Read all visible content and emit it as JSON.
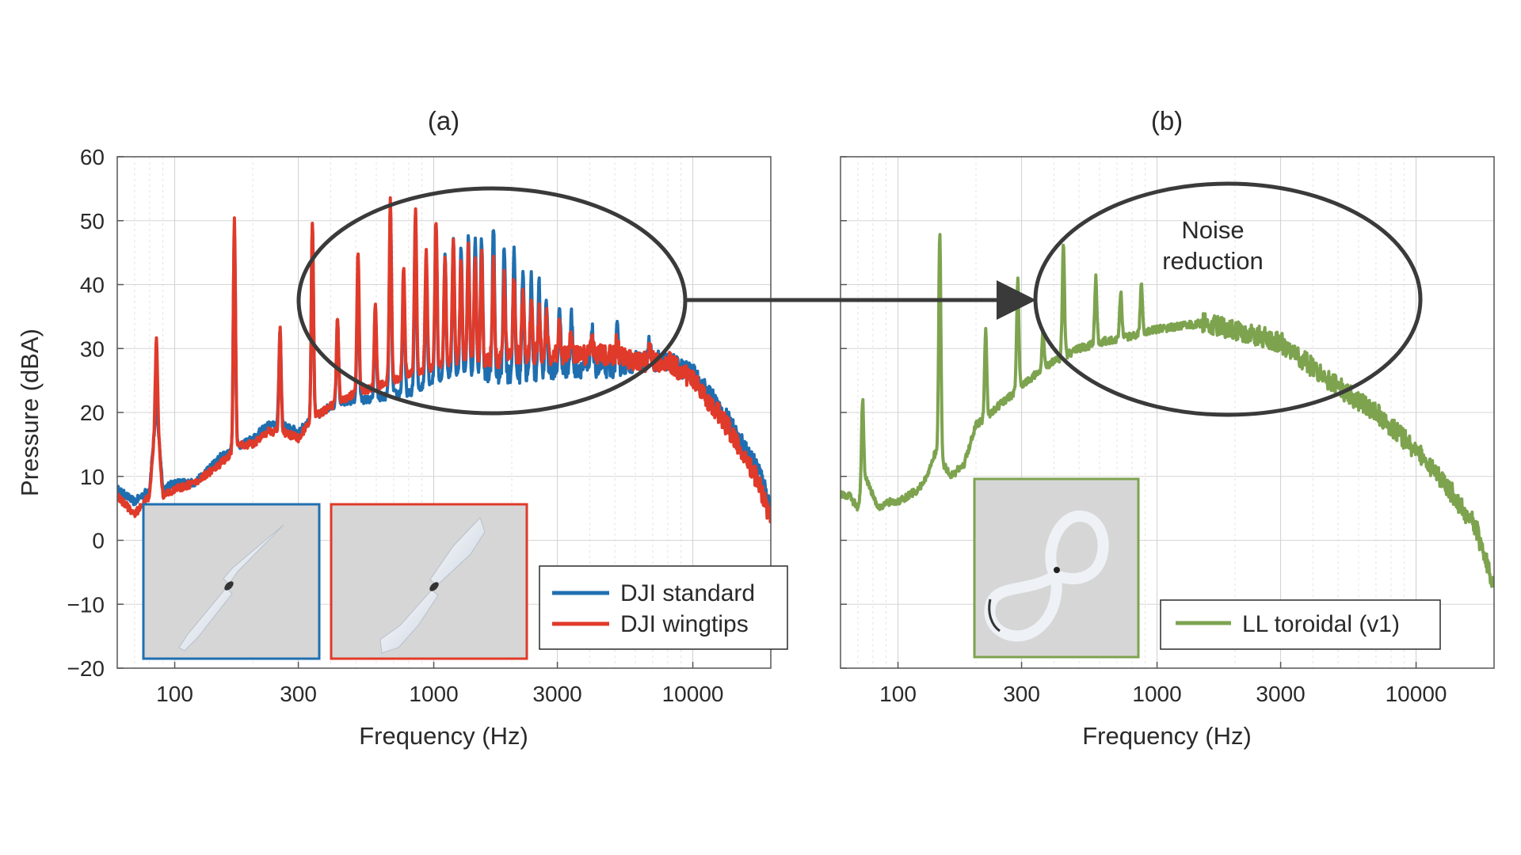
{
  "figure": {
    "background": "#ffffff",
    "ellipse_color": "#3a3a3a",
    "arrow_color": "#3a3a3a",
    "annotation_line1": "Noise",
    "annotation_line2": "reduction",
    "y_axis_label": "Pressure (dBA)"
  },
  "chart_data": [
    {
      "type": "line",
      "panel_title": "(a)",
      "xlabel": "Frequency (Hz)",
      "ylabel": "Pressure (dBA)",
      "xscale": "log",
      "xlim": [
        60,
        20000
      ],
      "ylim": [
        -20,
        60
      ],
      "xticks": [
        100,
        300,
        1000,
        3000,
        10000
      ],
      "xtick_labels": [
        "100",
        "300",
        "1000",
        "3000",
        "10000"
      ],
      "yticks": [
        -20,
        -10,
        0,
        10,
        20,
        30,
        40,
        50,
        60
      ],
      "ytick_labels": [
        "−20",
        "−10",
        "0",
        "10",
        "20",
        "30",
        "40",
        "50",
        "60"
      ],
      "grid": true,
      "legend_position": "bottom-right",
      "inset_images": [
        "standard-propeller-photo",
        "wingtip-propeller-photo"
      ],
      "series": [
        {
          "name": "DJI standard",
          "color": "#1f6fb0",
          "x": [
            60,
            70,
            80,
            85,
            90,
            100,
            120,
            150,
            180,
            200,
            230,
            260,
            300,
            340,
            400,
            500,
            600,
            700,
            800,
            1000,
            1200,
            1500,
            1800,
            2200,
            2600,
            3000,
            4000,
            5000,
            6000,
            7000,
            8000,
            10000,
            12000,
            14000,
            16000,
            18000,
            20000
          ],
          "y": [
            8,
            6,
            8,
            21,
            8,
            9,
            9,
            13,
            15,
            16,
            18,
            18,
            17,
            19,
            21,
            22,
            22,
            23,
            23,
            25,
            26,
            26,
            26,
            26,
            26,
            27,
            27,
            27,
            28,
            28,
            28,
            26,
            22,
            18,
            14,
            11,
            5
          ],
          "peaks": [
            {
              "x": 85,
              "y": 22
            },
            {
              "x": 170,
              "y": 48
            },
            {
              "x": 255,
              "y": 33
            },
            {
              "x": 340,
              "y": 49
            },
            {
              "x": 425,
              "y": 35
            },
            {
              "x": 510,
              "y": 42
            },
            {
              "x": 595,
              "y": 36
            },
            {
              "x": 680,
              "y": 52
            },
            {
              "x": 765,
              "y": 42
            },
            {
              "x": 850,
              "y": 51
            },
            {
              "x": 935,
              "y": 43
            },
            {
              "x": 1020,
              "y": 49
            },
            {
              "x": 1105,
              "y": 45
            },
            {
              "x": 1190,
              "y": 47
            },
            {
              "x": 1275,
              "y": 46
            },
            {
              "x": 1360,
              "y": 48
            },
            {
              "x": 1445,
              "y": 47
            },
            {
              "x": 1530,
              "y": 48
            },
            {
              "x": 1700,
              "y": 49
            },
            {
              "x": 1870,
              "y": 47
            },
            {
              "x": 2040,
              "y": 45
            },
            {
              "x": 2210,
              "y": 43
            },
            {
              "x": 2380,
              "y": 41
            },
            {
              "x": 2550,
              "y": 40
            },
            {
              "x": 2720,
              "y": 38
            },
            {
              "x": 3060,
              "y": 36
            },
            {
              "x": 3400,
              "y": 35
            },
            {
              "x": 4080,
              "y": 33
            },
            {
              "x": 5100,
              "y": 33
            },
            {
              "x": 6800,
              "y": 31
            }
          ]
        },
        {
          "name": "DJI wingtips",
          "color": "#e03a2a",
          "x": [
            60,
            70,
            80,
            85,
            90,
            100,
            120,
            150,
            180,
            200,
            230,
            260,
            300,
            340,
            400,
            500,
            600,
            700,
            800,
            1000,
            1200,
            1500,
            1800,
            2200,
            2600,
            3000,
            4000,
            5000,
            6000,
            7000,
            8000,
            10000,
            12000,
            14000,
            16000,
            18000,
            20000
          ],
          "y": [
            7,
            4,
            7,
            21,
            7,
            8,
            9,
            12,
            15,
            15,
            17,
            17,
            16,
            19,
            21,
            23,
            24,
            25,
            26,
            27,
            28,
            28,
            28,
            29,
            29,
            29,
            29,
            29,
            28,
            28,
            28,
            25,
            21,
            17,
            13,
            9,
            3
          ],
          "peaks": [
            {
              "x": 85,
              "y": 32
            },
            {
              "x": 170,
              "y": 50
            },
            {
              "x": 255,
              "y": 33
            },
            {
              "x": 340,
              "y": 50
            },
            {
              "x": 425,
              "y": 35
            },
            {
              "x": 510,
              "y": 45
            },
            {
              "x": 595,
              "y": 37
            },
            {
              "x": 680,
              "y": 53
            },
            {
              "x": 765,
              "y": 43
            },
            {
              "x": 850,
              "y": 52
            },
            {
              "x": 935,
              "y": 45
            },
            {
              "x": 1020,
              "y": 50
            },
            {
              "x": 1105,
              "y": 44
            },
            {
              "x": 1190,
              "y": 47
            },
            {
              "x": 1275,
              "y": 44
            },
            {
              "x": 1360,
              "y": 46
            },
            {
              "x": 1445,
              "y": 44
            },
            {
              "x": 1530,
              "y": 45
            },
            {
              "x": 1700,
              "y": 43
            },
            {
              "x": 1870,
              "y": 41
            },
            {
              "x": 2040,
              "y": 40
            },
            {
              "x": 2210,
              "y": 39
            },
            {
              "x": 2380,
              "y": 37
            },
            {
              "x": 2550,
              "y": 36
            },
            {
              "x": 2720,
              "y": 35
            },
            {
              "x": 3060,
              "y": 34
            },
            {
              "x": 3400,
              "y": 33
            },
            {
              "x": 4080,
              "y": 32
            },
            {
              "x": 5100,
              "y": 31
            },
            {
              "x": 6800,
              "y": 30
            }
          ]
        }
      ]
    },
    {
      "type": "line",
      "panel_title": "(b)",
      "xlabel": "Frequency (Hz)",
      "xscale": "log",
      "xlim": [
        60,
        20000
      ],
      "ylim": [
        -20,
        60
      ],
      "xticks": [
        100,
        300,
        1000,
        3000,
        10000
      ],
      "xtick_labels": [
        "100",
        "300",
        "1000",
        "3000",
        "10000"
      ],
      "yticks": [
        -20,
        -10,
        0,
        10,
        20,
        30,
        40,
        50,
        60
      ],
      "grid": true,
      "legend_position": "bottom-right",
      "inset_images": [
        "toroidal-propeller-photo"
      ],
      "series": [
        {
          "name": "LL toroidal (v1)",
          "color": "#7da34f",
          "x": [
            60,
            65,
            70,
            75,
            80,
            85,
            90,
            100,
            110,
            120,
            130,
            140,
            160,
            180,
            200,
            230,
            260,
            300,
            340,
            400,
            500,
            600,
            800,
            1000,
            1500,
            2000,
            3000,
            4000,
            5000,
            7000,
            10000,
            14000,
            17000,
            20000
          ],
          "y": [
            7,
            7,
            5,
            10,
            7,
            5,
            6,
            6,
            7,
            8,
            10,
            14,
            10,
            12,
            18,
            20,
            22,
            24,
            26,
            28,
            30,
            31,
            32,
            33,
            34,
            33,
            31,
            27,
            24,
            20,
            14,
            7,
            2,
            -7
          ],
          "peaks": [
            {
              "x": 73,
              "y": 22
            },
            {
              "x": 145,
              "y": 48
            },
            {
              "x": 218,
              "y": 33
            },
            {
              "x": 290,
              "y": 41
            },
            {
              "x": 363,
              "y": 33
            },
            {
              "x": 435,
              "y": 46
            },
            {
              "x": 580,
              "y": 41
            },
            {
              "x": 725,
              "y": 39
            },
            {
              "x": 870,
              "y": 40
            }
          ]
        }
      ]
    }
  ]
}
